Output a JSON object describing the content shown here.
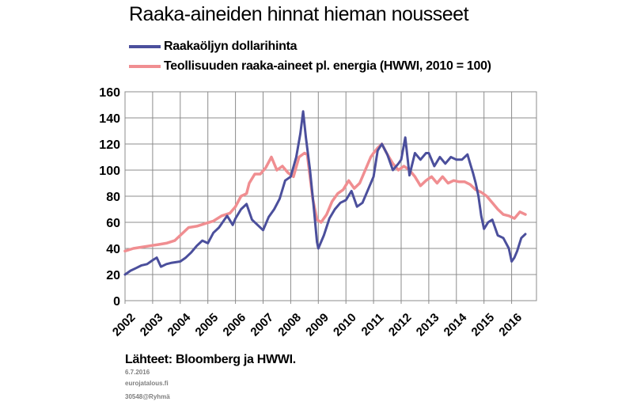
{
  "chart_data": {
    "type": "line",
    "title": "Raaka-aineiden hinnat hieman nousseet",
    "xlabel": "",
    "ylabel": "",
    "ylim": [
      0,
      160
    ],
    "yticks": [
      "0",
      "20",
      "40",
      "60",
      "80",
      "100",
      "120",
      "140",
      "160"
    ],
    "xticks": [
      "2002",
      "2003",
      "2004",
      "2005",
      "2006",
      "2007",
      "2008",
      "2009",
      "2010",
      "2011",
      "2012",
      "2013",
      "2014",
      "2015",
      "2016"
    ],
    "xlim": [
      2002.0,
      2016.9
    ],
    "grid": true,
    "legend_position": "top-left",
    "series": [
      {
        "name": "Raakaöljyn dollarihinta",
        "color": "#4b4f9c",
        "x": [
          2002.0,
          2002.2,
          2002.4,
          2002.6,
          2002.8,
          2003.0,
          2003.15,
          2003.3,
          2003.5,
          2003.7,
          2004.0,
          2004.2,
          2004.4,
          2004.6,
          2004.8,
          2005.0,
          2005.2,
          2005.4,
          2005.6,
          2005.7,
          2005.9,
          2006.0,
          2006.2,
          2006.4,
          2006.6,
          2006.8,
          2007.0,
          2007.2,
          2007.4,
          2007.6,
          2007.8,
          2008.0,
          2008.2,
          2008.35,
          2008.45,
          2008.55,
          2008.7,
          2008.85,
          2008.95,
          2009.0,
          2009.2,
          2009.4,
          2009.6,
          2009.8,
          2010.0,
          2010.2,
          2010.4,
          2010.6,
          2010.8,
          2011.0,
          2011.15,
          2011.3,
          2011.5,
          2011.7,
          2011.9,
          2012.0,
          2012.15,
          2012.3,
          2012.5,
          2012.7,
          2012.9,
          2013.0,
          2013.2,
          2013.4,
          2013.6,
          2013.8,
          2014.0,
          2014.2,
          2014.4,
          2014.5,
          2014.6,
          2014.7,
          2014.8,
          2014.9,
          2015.0,
          2015.15,
          2015.3,
          2015.5,
          2015.7,
          2015.9,
          2016.0,
          2016.1,
          2016.2,
          2016.35,
          2016.5
        ],
        "y": [
          20,
          23,
          25,
          27,
          28,
          31,
          33,
          26,
          28,
          29,
          30,
          33,
          37,
          42,
          46,
          44,
          52,
          56,
          62,
          65,
          58,
          63,
          70,
          74,
          62,
          58,
          54,
          64,
          70,
          78,
          92,
          95,
          110,
          128,
          145,
          125,
          100,
          68,
          45,
          40,
          50,
          63,
          70,
          75,
          77,
          84,
          72,
          75,
          85,
          95,
          115,
          120,
          112,
          100,
          105,
          108,
          125,
          96,
          113,
          108,
          113,
          113,
          103,
          110,
          105,
          110,
          108,
          108,
          112,
          105,
          98,
          90,
          80,
          65,
          55,
          60,
          62,
          50,
          48,
          40,
          30,
          33,
          38,
          48,
          51
        ]
      },
      {
        "name": "Teollisuuden raaka-aineet pl. energia (HWWI, 2010 = 100)",
        "color": "#f08e91",
        "x": [
          2002.0,
          2002.3,
          2002.6,
          2002.9,
          2003.2,
          2003.5,
          2003.8,
          2004.0,
          2004.3,
          2004.6,
          2004.9,
          2005.2,
          2005.5,
          2005.8,
          2006.0,
          2006.2,
          2006.4,
          2006.5,
          2006.7,
          2006.9,
          2007.1,
          2007.3,
          2007.5,
          2007.7,
          2007.9,
          2008.1,
          2008.3,
          2008.5,
          2008.6,
          2008.7,
          2008.8,
          2008.95,
          2009.1,
          2009.3,
          2009.5,
          2009.7,
          2009.9,
          2010.1,
          2010.3,
          2010.5,
          2010.7,
          2010.9,
          2011.0,
          2011.15,
          2011.3,
          2011.5,
          2011.7,
          2011.9,
          2012.1,
          2012.3,
          2012.5,
          2012.7,
          2012.9,
          2013.1,
          2013.3,
          2013.5,
          2013.7,
          2013.9,
          2014.1,
          2014.3,
          2014.5,
          2014.7,
          2014.9,
          2015.1,
          2015.3,
          2015.5,
          2015.7,
          2015.9,
          2016.1,
          2016.3,
          2016.5
        ],
        "y": [
          38,
          40,
          41,
          42,
          43,
          44,
          46,
          50,
          56,
          57,
          59,
          61,
          65,
          67,
          72,
          80,
          82,
          90,
          97,
          97,
          102,
          110,
          100,
          103,
          98,
          95,
          110,
          113,
          112,
          95,
          78,
          62,
          60,
          66,
          76,
          82,
          85,
          92,
          86,
          90,
          100,
          110,
          113,
          117,
          120,
          112,
          105,
          100,
          103,
          100,
          95,
          88,
          92,
          95,
          90,
          95,
          90,
          92,
          91,
          91,
          89,
          85,
          83,
          80,
          75,
          70,
          66,
          65,
          63,
          68,
          66
        ]
      }
    ]
  },
  "footer": {
    "source": "Lähteet: Bloomberg ja HWWI.",
    "date": "6.7.2016",
    "site": "eurojatalous.fi",
    "id": "30548@Ryhmä"
  }
}
